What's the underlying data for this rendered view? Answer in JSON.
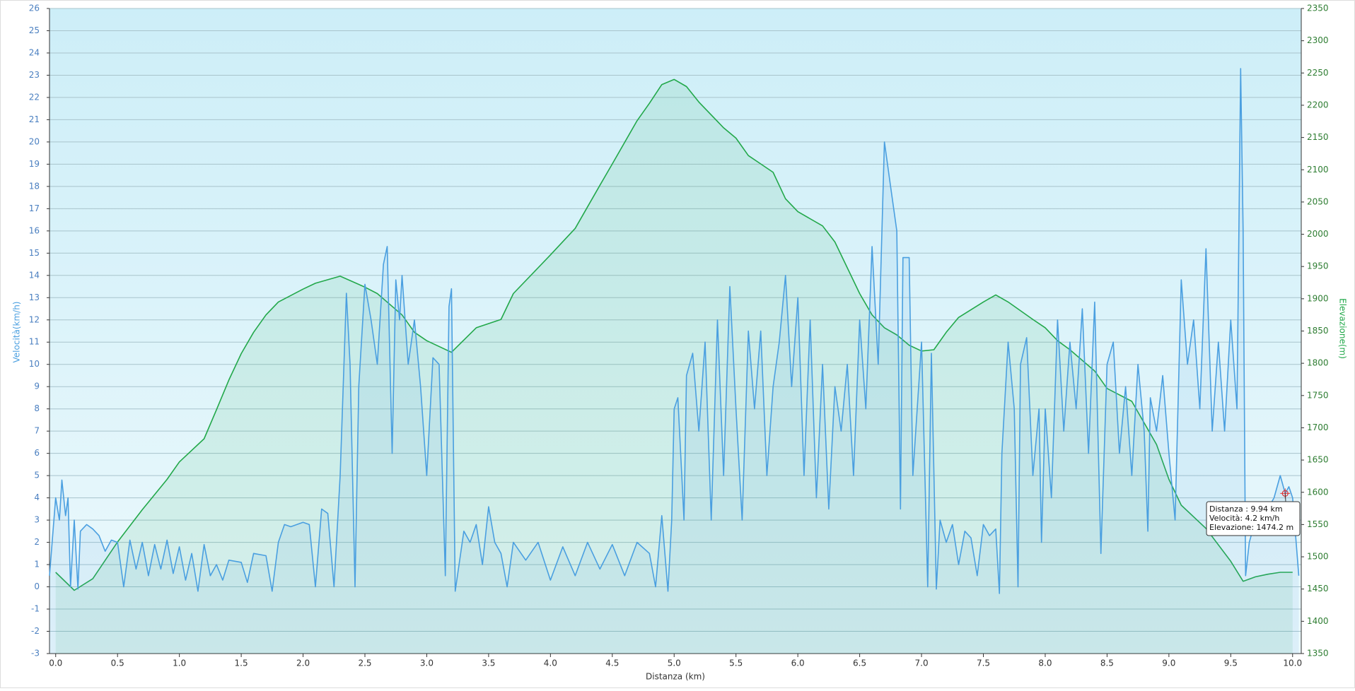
{
  "chart_data": {
    "type": "line",
    "xlabel": "Distanza  (km)",
    "ylabel": "Velocità(km/h)",
    "y2label": "Elevazione(m)",
    "xlim": [
      -0.05,
      10.07
    ],
    "ylim": [
      -3,
      26
    ],
    "y2lim": [
      1350,
      2350
    ],
    "grid": true,
    "xticks": [
      {
        "value": 0,
        "label": "0.0"
      },
      0.5,
      {
        "value": 1,
        "label": "1.0"
      },
      1.5,
      {
        "value": 2,
        "label": "2.0"
      },
      2.5,
      {
        "value": 3,
        "label": "3.0"
      },
      3.5,
      {
        "value": 4,
        "label": "4.0"
      },
      4.5,
      {
        "value": 5,
        "label": "5.0"
      },
      5.5,
      {
        "value": 6,
        "label": "6.0"
      },
      6.5,
      {
        "value": 7,
        "label": "7.0"
      },
      7.5,
      {
        "value": 8,
        "label": "8.0"
      },
      8.5,
      {
        "value": 9,
        "label": "9.0"
      },
      9.5,
      {
        "value": 10,
        "label": "10.0"
      }
    ],
    "yticks": [
      -3,
      -2,
      -1,
      0,
      1,
      2,
      3,
      4,
      5,
      6,
      7,
      8,
      9,
      10,
      11,
      12,
      13,
      14,
      15,
      16,
      17,
      18,
      19,
      20,
      21,
      22,
      23,
      24,
      25,
      26
    ],
    "y2ticks": [
      1350,
      1400,
      1450,
      1500,
      1550,
      1600,
      1650,
      1700,
      1750,
      1800,
      1850,
      1900,
      1950,
      2000,
      2050,
      2100,
      2150,
      2200,
      2250,
      2300,
      2350
    ],
    "series": [
      {
        "name": "Elevazione",
        "axis": "y2",
        "color": "#22a84a",
        "x": [
          0.0,
          0.15,
          0.3,
          0.5,
          0.7,
          0.9,
          1.0,
          1.2,
          1.3,
          1.4,
          1.5,
          1.6,
          1.7,
          1.8,
          2.0,
          2.1,
          2.3,
          2.5,
          2.6,
          2.8,
          2.9,
          3.0,
          3.2,
          3.4,
          3.6,
          3.7,
          3.9,
          4.0,
          4.2,
          4.4,
          4.5,
          4.7,
          4.8,
          4.9,
          5.0,
          5.1,
          5.2,
          5.4,
          5.5,
          5.6,
          5.7,
          5.8,
          5.9,
          6.0,
          6.2,
          6.3,
          6.5,
          6.6,
          6.7,
          6.8,
          6.9,
          7.0,
          7.1,
          7.2,
          7.3,
          7.5,
          7.6,
          7.7,
          7.9,
          8.0,
          8.1,
          8.2,
          8.4,
          8.5,
          8.7,
          8.9,
          9.0,
          9.1,
          9.3,
          9.5,
          9.6,
          9.7,
          9.8,
          9.9,
          10.0
        ],
        "values": [
          1476,
          1448,
          1466,
          1523,
          1573,
          1620,
          1647,
          1683,
          1728,
          1774,
          1815,
          1848,
          1875,
          1895,
          1915,
          1924,
          1935,
          1918,
          1908,
          1875,
          1848,
          1835,
          1817,
          1855,
          1868,
          1908,
          1948,
          1968,
          2009,
          2076,
          2109,
          2176,
          2203,
          2232,
          2240,
          2229,
          2205,
          2165,
          2149,
          2122,
          2109,
          2096,
          2055,
          2035,
          2013,
          1988,
          1908,
          1875,
          1855,
          1844,
          1828,
          1819,
          1821,
          1848,
          1871,
          1895,
          1906,
          1895,
          1868,
          1855,
          1835,
          1821,
          1788,
          1761,
          1741,
          1674,
          1620,
          1580,
          1544,
          1493,
          1462,
          1469,
          1473,
          1476,
          1476
        ]
      },
      {
        "name": "Velocità",
        "axis": "y",
        "color": "#4a9fe0",
        "x": [
          -0.05,
          0.0,
          0.03,
          0.05,
          0.08,
          0.1,
          0.12,
          0.15,
          0.18,
          0.2,
          0.25,
          0.3,
          0.35,
          0.4,
          0.45,
          0.5,
          0.55,
          0.6,
          0.65,
          0.7,
          0.75,
          0.8,
          0.85,
          0.9,
          0.95,
          1.0,
          1.05,
          1.1,
          1.15,
          1.2,
          1.25,
          1.3,
          1.35,
          1.4,
          1.5,
          1.55,
          1.6,
          1.7,
          1.75,
          1.8,
          1.85,
          1.9,
          2.0,
          2.05,
          2.1,
          2.15,
          2.2,
          2.25,
          2.3,
          2.35,
          2.38,
          2.42,
          2.45,
          2.5,
          2.55,
          2.6,
          2.65,
          2.68,
          2.72,
          2.75,
          2.78,
          2.8,
          2.85,
          2.9,
          2.95,
          3.0,
          3.05,
          3.1,
          3.15,
          3.18,
          3.2,
          3.23,
          3.3,
          3.35,
          3.4,
          3.45,
          3.5,
          3.55,
          3.6,
          3.65,
          3.7,
          3.8,
          3.9,
          4.0,
          4.1,
          4.2,
          4.3,
          4.4,
          4.5,
          4.6,
          4.7,
          4.8,
          4.85,
          4.9,
          4.95,
          4.98,
          5.0,
          5.03,
          5.08,
          5.1,
          5.15,
          5.2,
          5.25,
          5.3,
          5.35,
          5.4,
          5.45,
          5.5,
          5.55,
          5.6,
          5.65,
          5.7,
          5.75,
          5.8,
          5.85,
          5.9,
          5.95,
          6.0,
          6.05,
          6.1,
          6.15,
          6.2,
          6.25,
          6.3,
          6.35,
          6.4,
          6.45,
          6.5,
          6.55,
          6.6,
          6.65,
          6.7,
          6.75,
          6.8,
          6.83,
          6.85,
          6.9,
          6.93,
          7.0,
          7.05,
          7.08,
          7.12,
          7.15,
          7.2,
          7.25,
          7.3,
          7.35,
          7.4,
          7.45,
          7.5,
          7.55,
          7.6,
          7.63,
          7.65,
          7.7,
          7.75,
          7.78,
          7.8,
          7.85,
          7.9,
          7.95,
          7.97,
          8.0,
          8.05,
          8.1,
          8.15,
          8.2,
          8.25,
          8.3,
          8.35,
          8.4,
          8.45,
          8.5,
          8.55,
          8.6,
          8.65,
          8.7,
          8.75,
          8.8,
          8.83,
          8.85,
          8.9,
          8.95,
          9.0,
          9.05,
          9.1,
          9.15,
          9.2,
          9.25,
          9.3,
          9.35,
          9.4,
          9.45,
          9.5,
          9.55,
          9.58,
          9.6,
          9.62,
          9.65,
          9.7,
          9.75,
          9.8,
          9.85,
          9.9,
          9.94,
          9.97,
          10.0,
          10.05
        ],
        "values": [
          0.5,
          4.0,
          3.0,
          4.8,
          3.2,
          4.0,
          0.0,
          3.0,
          -0.1,
          2.5,
          2.8,
          2.6,
          2.3,
          1.6,
          2.1,
          2.0,
          0.0,
          2.1,
          0.8,
          2.0,
          0.5,
          1.9,
          0.8,
          2.1,
          0.6,
          1.8,
          0.3,
          1.5,
          -0.2,
          1.9,
          0.5,
          1.0,
          0.3,
          1.2,
          1.1,
          0.2,
          1.5,
          1.4,
          -0.2,
          2.0,
          2.8,
          2.7,
          2.9,
          2.8,
          0.0,
          3.5,
          3.3,
          0.0,
          5.0,
          13.2,
          10.0,
          0.0,
          9.0,
          13.6,
          12.0,
          10.0,
          14.5,
          15.3,
          6.0,
          13.8,
          12.0,
          14.0,
          10.0,
          12.0,
          9.0,
          5.0,
          10.3,
          10.0,
          0.5,
          12.6,
          13.4,
          -0.2,
          2.5,
          2.0,
          2.8,
          1.0,
          3.6,
          2.0,
          1.5,
          0.0,
          2.0,
          1.2,
          2.0,
          0.3,
          1.8,
          0.5,
          2.0,
          0.8,
          1.9,
          0.5,
          2.0,
          1.5,
          0.0,
          3.2,
          -0.2,
          3.0,
          8.0,
          8.5,
          3.0,
          9.5,
          10.5,
          7.0,
          11.0,
          3.0,
          12.0,
          5.0,
          13.5,
          8.0,
          3.0,
          11.5,
          8.0,
          11.5,
          5.0,
          9.0,
          11.0,
          14.0,
          9.0,
          13.0,
          5.0,
          12.0,
          4.0,
          10.0,
          3.5,
          9.0,
          7.0,
          10.0,
          5.0,
          12.0,
          8.0,
          15.3,
          10.0,
          20.0,
          18.0,
          16.0,
          3.5,
          14.8,
          14.8,
          5.0,
          11.0,
          0.0,
          10.5,
          -0.1,
          3.0,
          2.0,
          2.8,
          1.0,
          2.5,
          2.2,
          0.5,
          2.8,
          2.3,
          2.6,
          -0.3,
          6.0,
          11.0,
          8.0,
          0.0,
          10.0,
          11.2,
          5.0,
          8.0,
          2.0,
          8.0,
          4.0,
          12.0,
          7.0,
          11.0,
          8.0,
          12.5,
          6.0,
          12.8,
          1.5,
          10.0,
          11.0,
          6.0,
          9.0,
          5.0,
          10.0,
          7.0,
          2.5,
          8.5,
          7.0,
          9.5,
          6.0,
          3.0,
          13.8,
          10.0,
          12.0,
          8.0,
          15.2,
          7.0,
          11.0,
          7.0,
          12.0,
          8.0,
          23.3,
          16.0,
          0.5,
          2.0,
          3.0,
          3.0,
          3.5,
          4.0,
          5.0,
          4.2,
          4.5,
          4.0,
          0.5
        ]
      }
    ],
    "tooltip": {
      "x": 9.94,
      "y": 4.2,
      "lines": [
        "Distanza : 9.94 km",
        "Velocità: 4.2 km/h",
        "Elevazione: 1474.2 m"
      ]
    }
  }
}
